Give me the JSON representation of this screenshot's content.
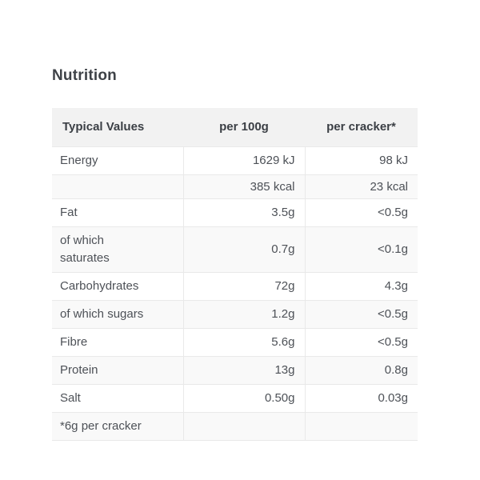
{
  "page": {
    "heading": "Nutrition"
  },
  "colors": {
    "header_bg": "#f2f2f2",
    "row_alt_bg": "#f9f9f9",
    "border": "#e9e9e9",
    "body_text": "#4d5157",
    "header_text": "#3b3f45",
    "heading_text": "#3e4247"
  },
  "table": {
    "columns": {
      "label": "Typical Values",
      "per_100g": "per 100g",
      "per_cracker": "per cracker*"
    },
    "rows": [
      {
        "label": "Energy",
        "per_100g": "1629 kJ",
        "per_cracker": "98 kJ"
      },
      {
        "label": "",
        "per_100g": "385 kcal",
        "per_cracker": "23 kcal"
      },
      {
        "label": "Fat",
        "per_100g": "3.5g",
        "per_cracker": "<0.5g"
      },
      {
        "label": "of which\nsaturates",
        "per_100g": "0.7g",
        "per_cracker": "<0.1g"
      },
      {
        "label": "Carbohydrates",
        "per_100g": "72g",
        "per_cracker": "4.3g"
      },
      {
        "label": "of which sugars",
        "per_100g": "1.2g",
        "per_cracker": "<0.5g"
      },
      {
        "label": "Fibre",
        "per_100g": "5.6g",
        "per_cracker": "<0.5g"
      },
      {
        "label": "Protein",
        "per_100g": "13g",
        "per_cracker": "0.8g"
      },
      {
        "label": "Salt",
        "per_100g": "0.50g",
        "per_cracker": "0.03g"
      },
      {
        "label": "*6g per cracker",
        "per_100g": "",
        "per_cracker": ""
      }
    ]
  }
}
